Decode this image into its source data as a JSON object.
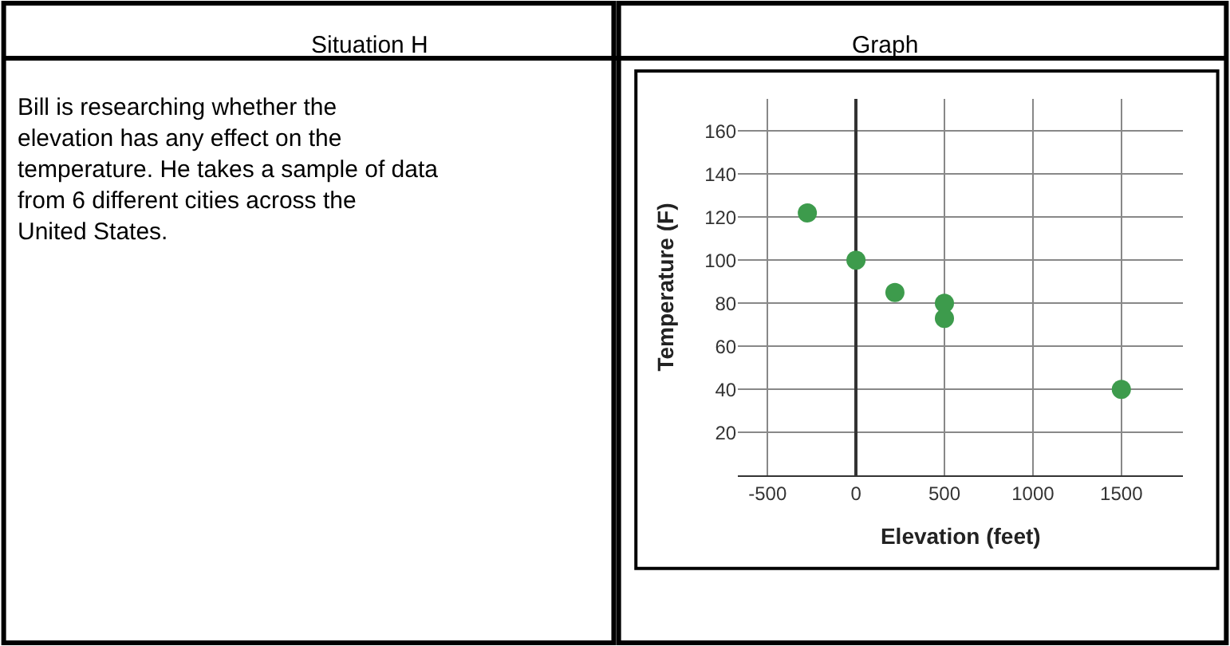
{
  "chart_data": [
    {
      "type": "other",
      "title": "Situation H",
      "annotations": [
        "Bill is researching whether the elevation has any effect on the temperature. He takes a sample of data from 6 different cities across the United States."
      ]
    },
    {
      "type": "scatter",
      "title": "Graph",
      "xlabel": "Elevation (feet)",
      "ylabel": "Temperature (F)",
      "x": [
        -275,
        0,
        220,
        500,
        500,
        1500
      ],
      "values": [
        122,
        100,
        85,
        80,
        73,
        40
      ],
      "color": "#3d9b4c",
      "marker": "circle",
      "grid": true,
      "xlim": [
        -667,
        1850
      ],
      "ylim": [
        0,
        175
      ],
      "xticks": [
        -500,
        0,
        500,
        1000,
        1500
      ],
      "yticks": [
        20,
        40,
        60,
        80,
        100,
        120,
        140,
        160
      ]
    }
  ]
}
